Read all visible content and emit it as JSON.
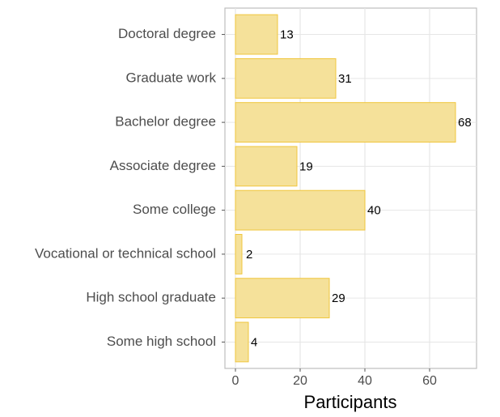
{
  "chart_data": {
    "type": "bar",
    "orientation": "horizontal",
    "x_label": "Participants",
    "categories": [
      "Doctoral degree",
      "Graduate work",
      "Bachelor degree",
      "Associate degree",
      "Some college",
      "Vocational or technical school",
      "High school graduate",
      "Some high school"
    ],
    "values": [
      13,
      31,
      68,
      19,
      40,
      2,
      29,
      4
    ],
    "color": "#f5e19a",
    "edge_color": "#f0c63c",
    "xlim": [
      -3.25,
      74.5
    ],
    "xticks": [
      0,
      20,
      40,
      60
    ],
    "grid": true
  }
}
